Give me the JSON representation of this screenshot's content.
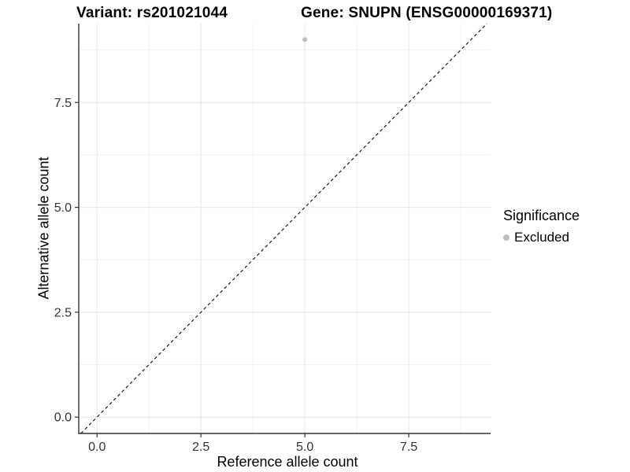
{
  "titles": {
    "variant": "Variant: rs201021044",
    "gene": "Gene: SNUPN (ENSG00000169371)"
  },
  "chart_data": {
    "type": "scatter",
    "title": "Variant: rs201021044   Gene: SNUPN (ENSG00000169371)",
    "xlabel": "Reference allele count",
    "ylabel": "Alternative allele count",
    "xlim": [
      -0.44,
      9.47
    ],
    "ylim": [
      -0.39,
      9.38
    ],
    "xticks": [
      0.0,
      2.5,
      5.0,
      7.5
    ],
    "yticks": [
      0.0,
      2.5,
      5.0,
      7.5
    ],
    "xtick_labels": [
      "0.0",
      "2.5",
      "5.0",
      "7.5"
    ],
    "ytick_labels": [
      "0.0",
      "2.5",
      "5.0",
      "7.5"
    ],
    "xticks_minor": [
      1.25,
      3.75,
      6.25,
      8.75
    ],
    "yticks_minor": [
      1.25,
      3.75,
      6.25,
      8.75
    ],
    "grid": "major and minor, light gray on white",
    "series": [
      {
        "name": "Excluded",
        "color": "#bebebe",
        "points": [
          {
            "x": 5,
            "y": 9
          }
        ]
      }
    ],
    "reference_line": {
      "slope": 1,
      "intercept": 0,
      "style": "dashed",
      "color": "#1a1a1a"
    },
    "legend": {
      "position": "right",
      "title": "Significance",
      "items": [
        {
          "label": "Excluded",
          "color": "#bebebe"
        }
      ]
    },
    "colors": {
      "axis_line": "#333333",
      "tick_label": "#333333",
      "grid_major": "#e7e7e7",
      "grid_minor": "#f3f3f3",
      "point": "#bebebe",
      "background": "#ffffff"
    }
  }
}
